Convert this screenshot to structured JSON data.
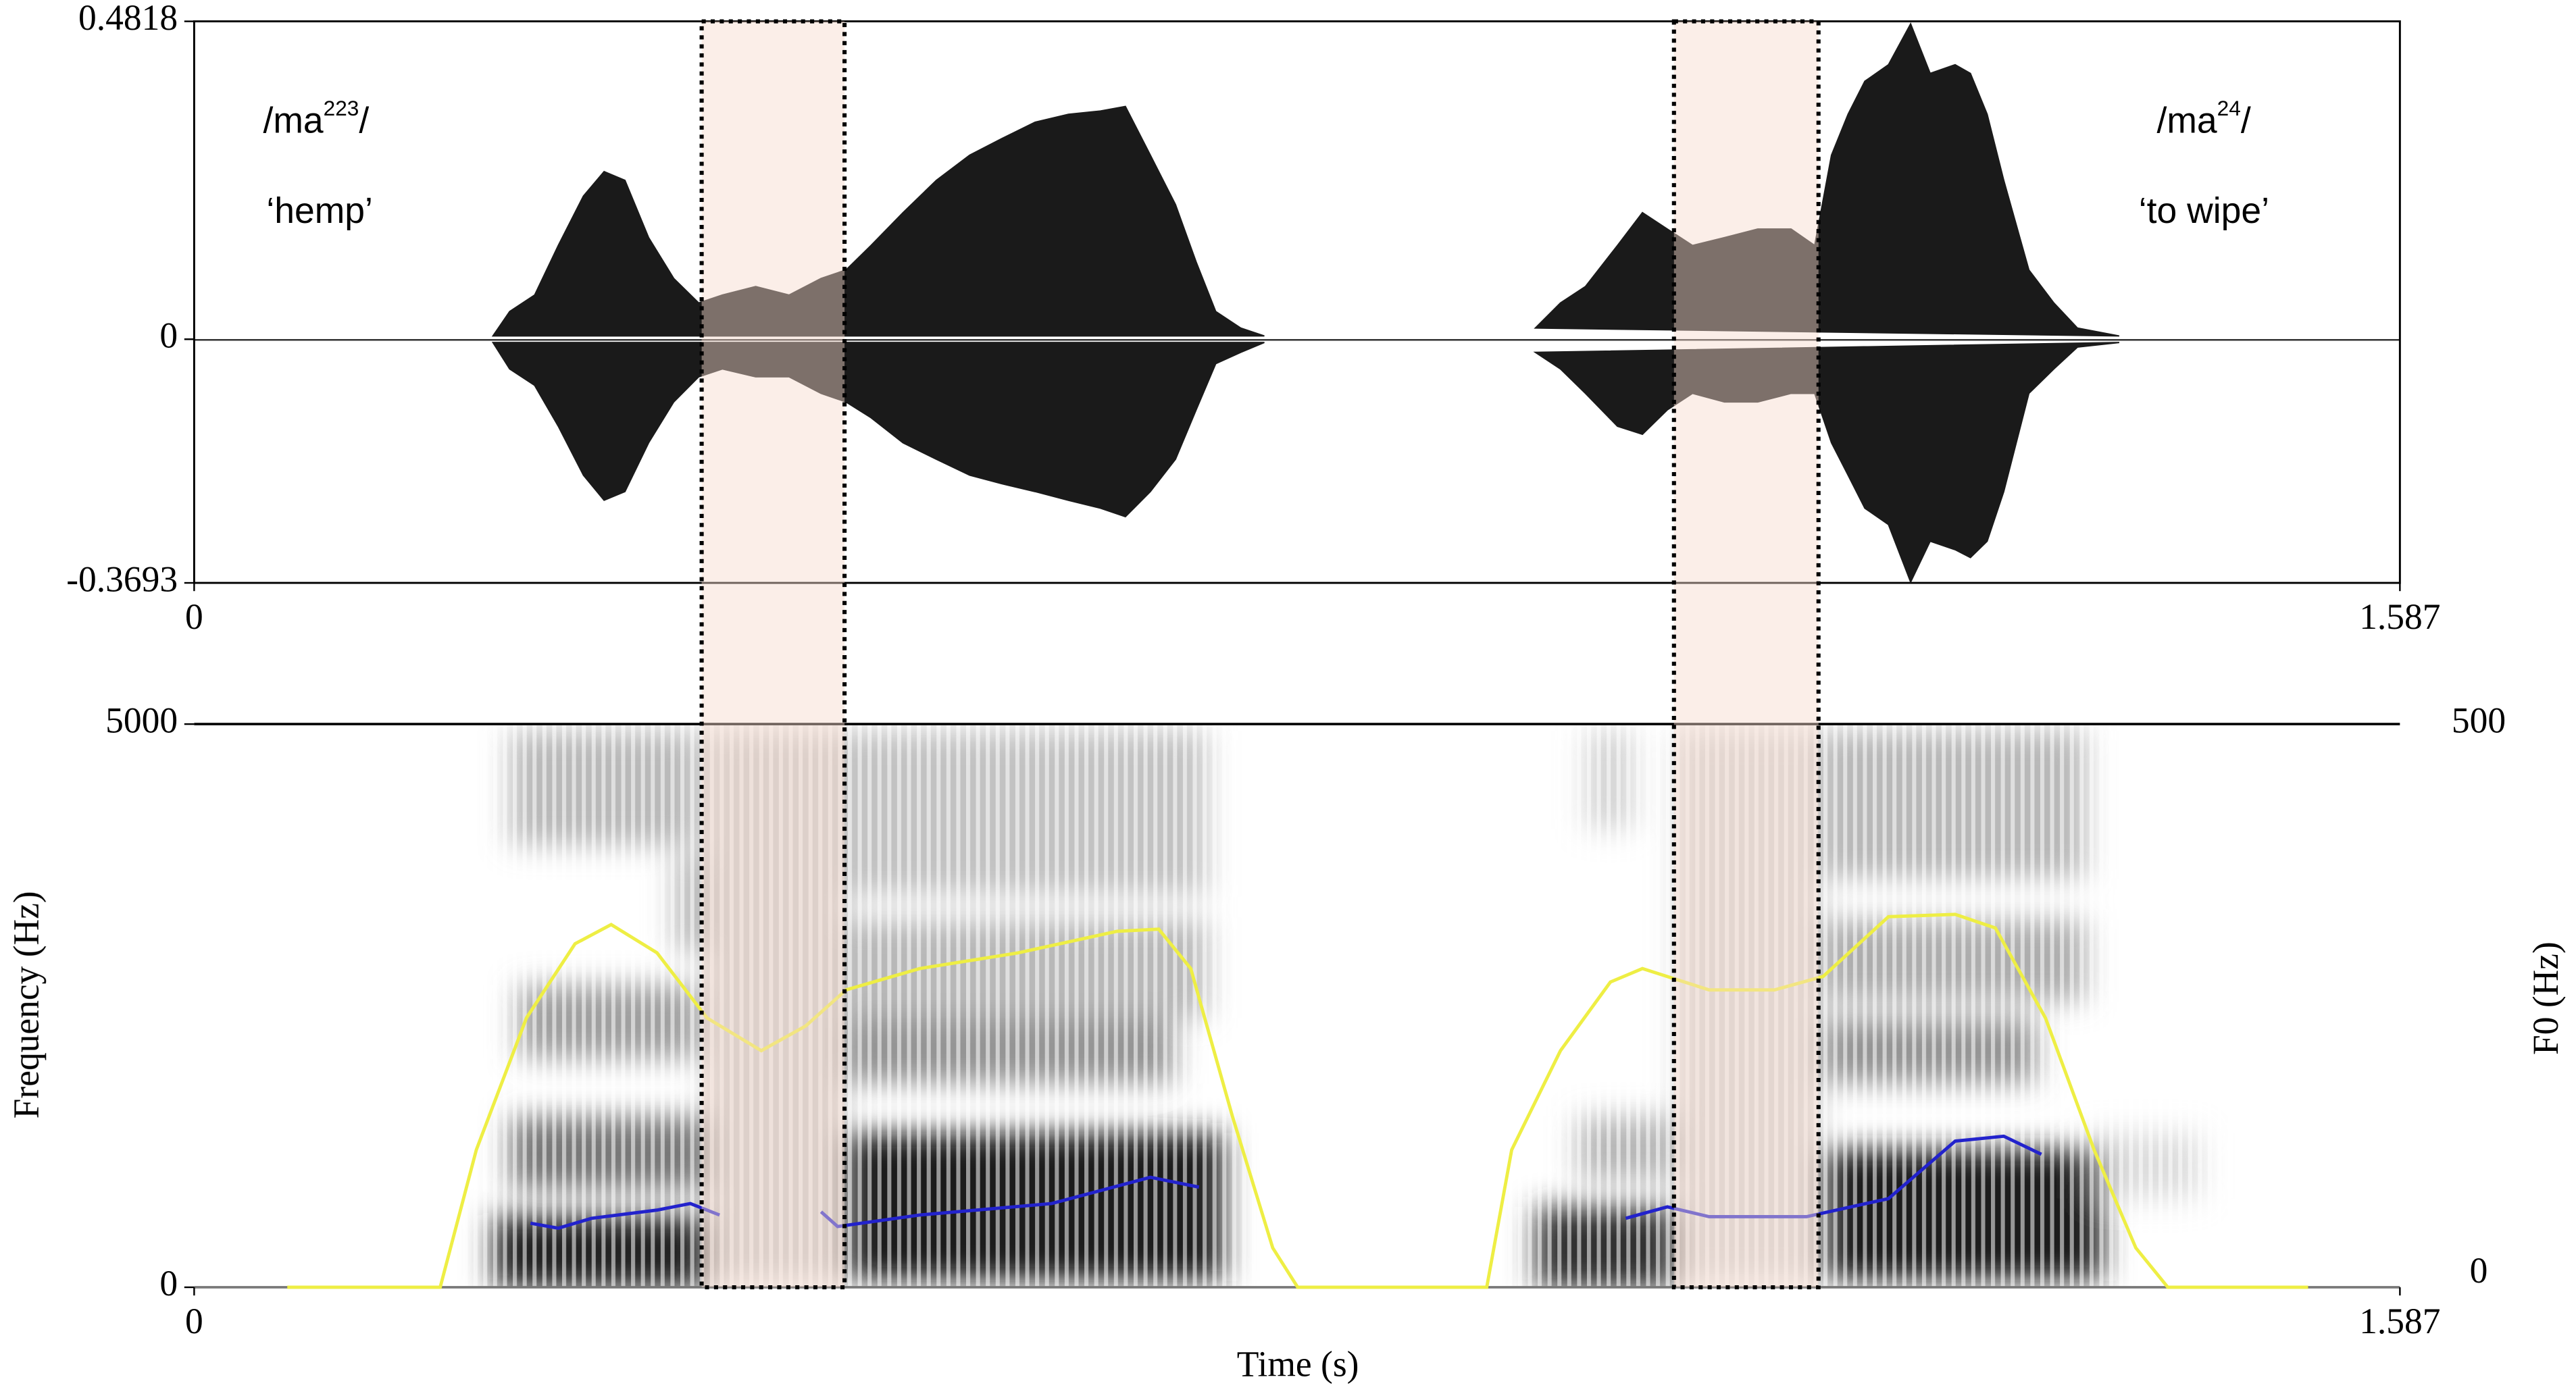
{
  "chart_data": [
    {
      "type": "waveform",
      "xlim": [
        0,
        1.587
      ],
      "xticks": [
        0,
        1.587
      ],
      "ylim": [
        -0.3693,
        0.4818
      ],
      "yticks": [
        -0.3693,
        0,
        0.4818
      ],
      "x": [
        0.215,
        0.227,
        0.245,
        0.262,
        0.28,
        0.295,
        0.31,
        0.327,
        0.345,
        0.363,
        0.38,
        0.404,
        0.428,
        0.451,
        0.469,
        0.487,
        0.51,
        0.534,
        0.558,
        0.581,
        0.605,
        0.629,
        0.652,
        0.67,
        0.688,
        0.706,
        0.721,
        0.735,
        0.753,
        0.77,
        null,
        0.965,
        0.983,
        1.001,
        1.024,
        1.042,
        1.06,
        1.078,
        1.101,
        1.125,
        1.149,
        1.166,
        1.178,
        1.19,
        1.202,
        1.219,
        1.235,
        1.249,
        1.267,
        1.278,
        1.29,
        1.302,
        1.32,
        1.338,
        1.355,
        1.385
      ],
      "series": [
        {
          "color": "#1a1a1a",
          "values": [
            0.005,
            0.042,
            0.067,
            0.142,
            0.217,
            0.254,
            0.241,
            0.154,
            0.092,
            0.055,
            0.067,
            0.08,
            0.067,
            0.092,
            0.105,
            0.142,
            0.192,
            0.241,
            0.279,
            0.304,
            0.329,
            0.341,
            0.346,
            0.353,
            0.279,
            0.204,
            0.117,
            0.042,
            0.017,
            0.005,
            null,
            0.017,
            0.055,
            0.08,
            0.142,
            0.192,
            0.167,
            0.142,
            0.154,
            0.167,
            0.167,
            0.142,
            0.279,
            0.341,
            0.391,
            0.416,
            0.478,
            0.403,
            0.416,
            0.403,
            0.341,
            0.241,
            0.105,
            0.055,
            0.017,
            0.005
          ]
        },
        {
          "color": "#1a1a1a",
          "values": [
            -0.005,
            -0.045,
            -0.07,
            -0.132,
            -0.206,
            -0.244,
            -0.231,
            -0.157,
            -0.095,
            -0.057,
            -0.045,
            -0.057,
            -0.057,
            -0.082,
            -0.095,
            -0.119,
            -0.157,
            -0.182,
            -0.206,
            -0.219,
            -0.231,
            -0.244,
            -0.256,
            -0.269,
            -0.231,
            -0.182,
            -0.107,
            -0.037,
            -0.02,
            -0.005,
            null,
            -0.02,
            -0.045,
            -0.082,
            -0.132,
            -0.144,
            -0.107,
            -0.082,
            -0.095,
            -0.095,
            -0.082,
            -0.082,
            -0.157,
            -0.206,
            -0.256,
            -0.281,
            -0.368,
            -0.306,
            -0.319,
            -0.331,
            -0.306,
            -0.231,
            -0.082,
            -0.045,
            -0.012,
            -0.005
          ]
        }
      ],
      "annotations": [
        {
          "base": "/ma",
          "tone": "223",
          "end": "/",
          "gloss": "‘hemp’"
        },
        {
          "base": "/ma",
          "tone": "24",
          "end": "/",
          "gloss": "‘to wipe’"
        }
      ]
    },
    {
      "type": "spectrogram",
      "xlabel": "Time (s)",
      "ylabel": "Frequency (Hz)",
      "y2label": "F0 (Hz)",
      "xlim": [
        0,
        1.587
      ],
      "xticks": [
        0,
        1.587
      ],
      "ylim": [
        0,
        5000
      ],
      "yticks": [
        0,
        5000
      ],
      "y2lim": [
        0,
        500
      ],
      "y2ticks": [
        0,
        500
      ],
      "series": [
        {
          "color": "#eeee44",
          "axis": "y2",
          "x": [
            0.067,
            0.177,
            0.203,
            0.239,
            0.274,
            0.3,
            0.333,
            0.369,
            0.408,
            0.44,
            0.469,
            0.522,
            0.593,
            0.664,
            0.694,
            0.717,
            0.747,
            0.776,
            0.794,
            0.93,
            0.948,
            0.983,
            1.019,
            1.042,
            1.09,
            1.137,
            1.172,
            1.219,
            1.267,
            1.296,
            1.332,
            1.367,
            1.397,
            1.42,
            1.521
          ],
          "values": [
            0,
            0,
            122,
            239,
            305,
            322,
            297,
            239,
            210,
            232,
            264,
            283,
            297,
            316,
            318,
            283,
            152,
            35,
            0,
            0,
            122,
            210,
            271,
            283,
            264,
            264,
            276,
            329,
            331,
            319,
            239,
            122,
            35,
            0,
            0
          ]
        },
        {
          "color": "#2222cc",
          "x": [
            0.242,
            0.262,
            0.286,
            0.333,
            0.357,
            0.378,
            null,
            0.451,
            0.463,
            0.522,
            0.617,
            0.688,
            0.723,
            null,
            1.03,
            1.06,
            1.09,
            1.16,
            1.219,
            1.267,
            1.302,
            1.329
          ],
          "values": [
            569,
            525,
            612,
            685,
            743,
            641,
            null,
            671,
            539,
            641,
            743,
            977,
            889,
            null,
            612,
            714,
            627,
            627,
            787,
            1297,
            1341,
            1181
          ]
        }
      ]
    }
  ]
}
